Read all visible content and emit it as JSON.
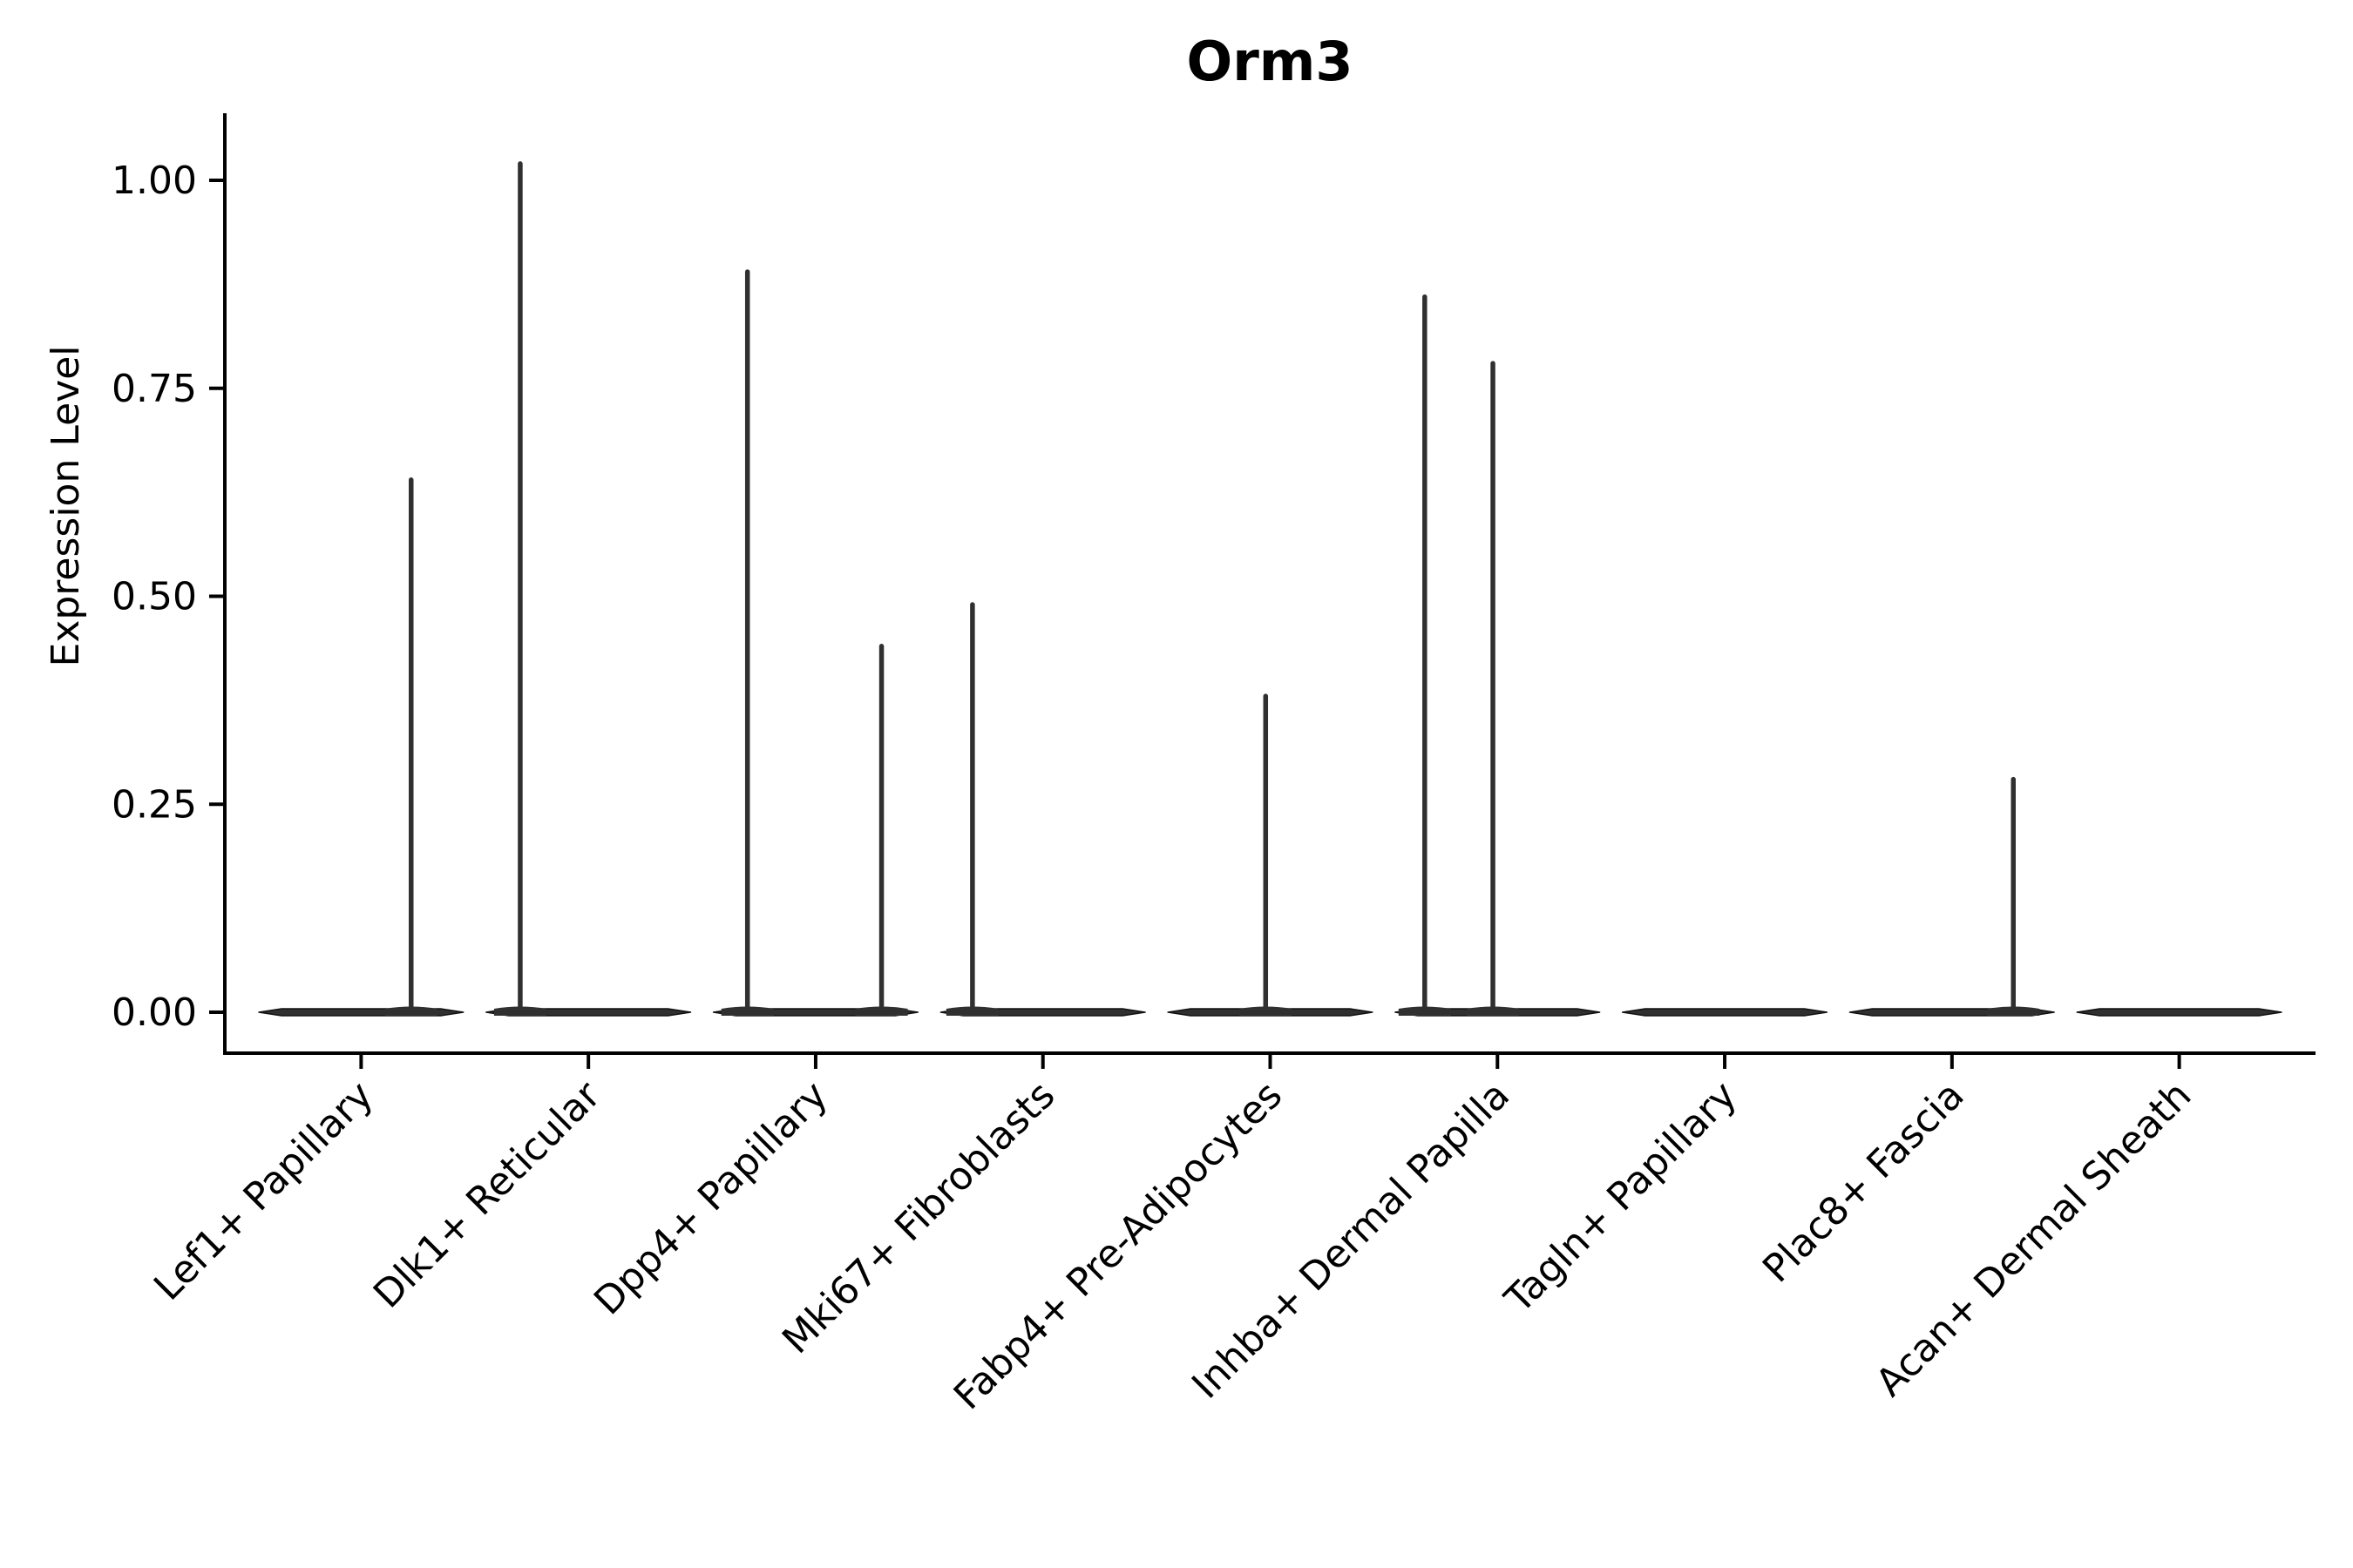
{
  "figure": {
    "title": "Orm3",
    "y_axis_label": "Expression Level"
  },
  "chart_data": {
    "type": "violin",
    "title": "Orm3",
    "xlabel": "",
    "ylabel": "Expression Level",
    "legend_position": "none",
    "grid": false,
    "background_color": "#ffffff",
    "axis_color": "#000000",
    "text_color": "#000000",
    "violin_fill": "#303030",
    "violin_edge": "#111111",
    "ylim": [
      -0.05,
      1.08
    ],
    "y_ticks": [
      "0.00",
      "0.25",
      "0.50",
      "0.75",
      "1.00"
    ],
    "categories": [
      "Lef1+ Papillary",
      "Dlk1+ Reticular",
      "Dpp4+ Papillary",
      "Mki67+ Fibroblasts",
      "Fabp4+ Pre-Adipocytes",
      "Inhba+ Dermal Papilla",
      "Tagln+ Papillary",
      "Plac8+ Fascia",
      "Acan+ Dermal Sheath"
    ],
    "max_expression": [
      0.64,
      1.02,
      0.89,
      0.49,
      0.38,
      0.86,
      0.0,
      0.28,
      0.0
    ],
    "violins": [
      {
        "category_index": 0,
        "zero_bar": true,
        "spikes": [
          {
            "offset": 0.22,
            "value": 0.64
          }
        ]
      },
      {
        "category_index": 1,
        "zero_bar": true,
        "spikes": [
          {
            "offset": -0.3,
            "value": 1.02
          }
        ]
      },
      {
        "category_index": 2,
        "zero_bar": true,
        "spikes": [
          {
            "offset": -0.3,
            "value": 0.89
          },
          {
            "offset": 0.29,
            "value": 0.44
          }
        ]
      },
      {
        "category_index": 3,
        "zero_bar": true,
        "spikes": [
          {
            "offset": -0.31,
            "value": 0.49
          }
        ]
      },
      {
        "category_index": 4,
        "zero_bar": true,
        "spikes": [
          {
            "offset": -0.02,
            "value": 0.38
          }
        ]
      },
      {
        "category_index": 5,
        "zero_bar": true,
        "spikes": [
          {
            "offset": -0.32,
            "value": 0.86
          },
          {
            "offset": -0.02,
            "value": 0.78
          }
        ]
      },
      {
        "category_index": 6,
        "zero_bar": true,
        "spikes": []
      },
      {
        "category_index": 7,
        "zero_bar": true,
        "spikes": [
          {
            "offset": 0.27,
            "value": 0.28
          }
        ]
      },
      {
        "category_index": 8,
        "zero_bar": true,
        "spikes": []
      }
    ]
  }
}
